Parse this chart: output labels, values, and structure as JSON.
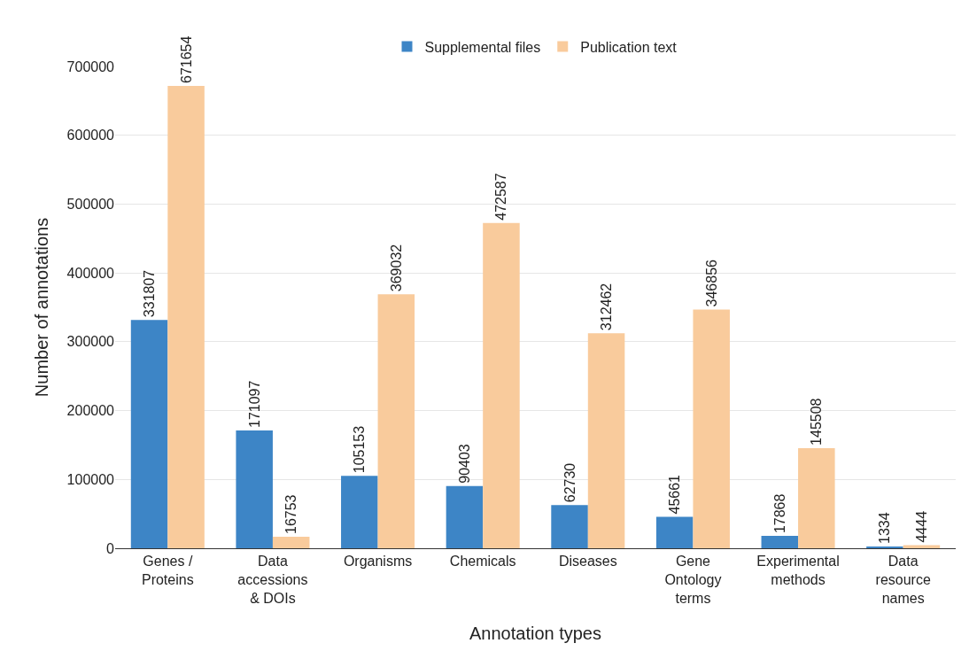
{
  "chart_data": {
    "type": "bar",
    "xlabel": "Annotation types",
    "ylabel": "Number of annotations",
    "categories": [
      "Genes /\nProteins",
      "Data\naccessions\n& DOIs",
      "Organisms",
      "Chemicals",
      "Diseases",
      "Gene\nOntology\nterms",
      "Experimental\nmethods",
      "Data\nresource\nnames"
    ],
    "series": [
      {
        "name": "Supplemental files",
        "color": "#3d85c6",
        "values": [
          331807,
          171097,
          105153,
          90403,
          62730,
          45661,
          17868,
          1334
        ]
      },
      {
        "name": "Publication text",
        "color": "#f9cb9c",
        "values": [
          671654,
          16753,
          369032,
          472587,
          312462,
          346856,
          145508,
          4444
        ]
      }
    ],
    "ylim": [
      0,
      700000
    ],
    "yticks": [
      0,
      100000,
      200000,
      300000,
      400000,
      500000,
      600000,
      700000
    ],
    "grid": "y",
    "legend": "top",
    "data_labels": true
  }
}
